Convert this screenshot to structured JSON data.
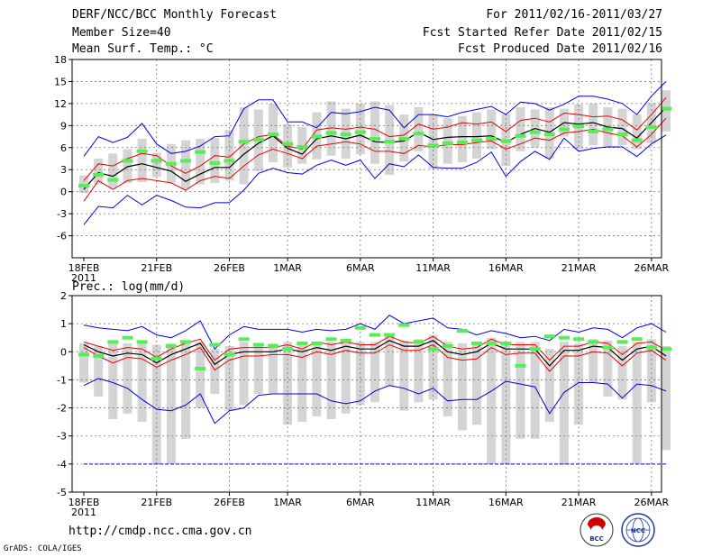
{
  "header": {
    "title": "DERF/NCC/BCC Monthly Forecast",
    "member_size": "Member Size=40",
    "variable1": "Mean Surf. Temp.: °C",
    "period": "For 2011/02/16-2011/03/27",
    "refer_date": "Fcst Started Refer Date 2011/02/15",
    "produced_date": "Fcst Produced Date 2011/02/16"
  },
  "panel2_label": "Prec.: log(mm/d)",
  "footer": {
    "url": "http://cmdp.ncc.cma.gov.cn",
    "credit": "GrADS: COLA/IGES",
    "logo1": "BCC",
    "logo2": "NCC"
  },
  "colors": {
    "max_min": "#0000ee",
    "spread": "#ee0000",
    "mean": "#000000",
    "obs": "#55ee55",
    "box": "#d4d4d4"
  },
  "chart_data": [
    {
      "type": "line",
      "title": "Mean Surf. Temp.: °C",
      "x_labels": [
        {
          "day": 0,
          "label": "18FEB",
          "sub": "2011"
        },
        {
          "day": 5,
          "label": "21FEB"
        },
        {
          "day": 10,
          "label": "26FEB"
        },
        {
          "day": 14,
          "label": "1MAR"
        },
        {
          "day": 19,
          "label": "6MAR"
        },
        {
          "day": 24,
          "label": "11MAR"
        },
        {
          "day": 29,
          "label": "16MAR"
        },
        {
          "day": 34,
          "label": "21MAR"
        },
        {
          "day": 39,
          "label": "26MAR"
        }
      ],
      "ylim": [
        -9,
        18
      ],
      "yticks": [
        -6,
        -3,
        0,
        3,
        6,
        9,
        12,
        15,
        18
      ],
      "series": [
        {
          "name": "max",
          "values": [
            4.8,
            7.5,
            6.7,
            7.4,
            9.3,
            6.5,
            5.2,
            5.5,
            6.2,
            7.5,
            7.6,
            11.3,
            12.5,
            12.5,
            9.5,
            9.5,
            8.7,
            10.8,
            10.6,
            10.9,
            11.5,
            11.1,
            8.7,
            10.5,
            10.5,
            10.2,
            10.8,
            11.2,
            11.6,
            10.5,
            12.2,
            12,
            11.1,
            11.9,
            13,
            13,
            12.6,
            12,
            10.5,
            13,
            15
          ]
        },
        {
          "name": "spread_upper",
          "values": [
            1.5,
            3.8,
            3.5,
            4.5,
            5.2,
            4.9,
            3.5,
            2.5,
            3.5,
            4.9,
            4.7,
            6.5,
            7.5,
            7.8,
            6.2,
            5.8,
            8.4,
            8.7,
            8.5,
            8.8,
            8.5,
            7.5,
            7.7,
            9.2,
            8.5,
            8.8,
            9.4,
            9.2,
            9.5,
            8.2,
            9.7,
            10,
            9.5,
            10.7,
            10.5,
            10.2,
            10.3,
            9.8,
            8.4,
            10.5,
            12.8
          ]
        },
        {
          "name": "mean",
          "values": [
            0.3,
            2.6,
            2.1,
            3.4,
            3.8,
            3.3,
            2.8,
            1.4,
            2.4,
            3.3,
            3.3,
            5.1,
            6.6,
            7.6,
            5.9,
            5.1,
            7.2,
            7.6,
            7.2,
            7.7,
            6.8,
            6.7,
            6.9,
            8.1,
            7.1,
            7.4,
            7.5,
            7.5,
            7.6,
            6.7,
            7.8,
            8.6,
            8.1,
            9.4,
            9.2,
            9.4,
            8.8,
            8.6,
            7.3,
            9.4,
            11.5
          ]
        },
        {
          "name": "spread_lower",
          "values": [
            -1.3,
            1.5,
            0.3,
            1.5,
            1.8,
            1.5,
            1.2,
            0.2,
            1.5,
            2.1,
            1.8,
            3.5,
            5,
            5.8,
            5.2,
            4.5,
            6.2,
            6.5,
            6.8,
            6.5,
            5.5,
            5.5,
            5.2,
            6.3,
            6.1,
            6.4,
            6.4,
            6.7,
            6.9,
            5.8,
            6.5,
            7.3,
            7,
            8,
            8.2,
            8.5,
            8,
            7.6,
            6.1,
            7.8,
            10
          ]
        },
        {
          "name": "min",
          "values": [
            -4.5,
            -2,
            -2.2,
            -0.5,
            -1.8,
            -0.5,
            -1.2,
            -2.1,
            -2.2,
            -1.5,
            -1.5,
            0.2,
            2.5,
            3.2,
            2.6,
            2.4,
            3.6,
            4.3,
            3.6,
            4.3,
            1.8,
            3.8,
            3.4,
            5,
            3.3,
            3.2,
            3.2,
            4,
            5.4,
            2.1,
            4.1,
            5.5,
            4.4,
            7.3,
            5.5,
            5.9,
            6.1,
            6.1,
            4.8,
            6.5,
            7.7
          ]
        },
        {
          "name": "observed",
          "values": [
            0.8,
            2.3,
            1.6,
            4.2,
            5.5,
            4.2,
            3.8,
            4.2,
            5.4,
            3.9,
            4.2,
            6.8,
            7.1,
            7.8,
            6.5,
            6.1,
            7.5,
            8,
            7.8,
            8.1,
            7.2,
            6.8,
            7.2,
            7.9,
            6.3,
            6.6,
            6.7,
            7,
            7.2,
            6.9,
            7.6,
            8.1,
            7.8,
            8.5,
            8.9,
            8.2,
            8.5,
            7.8,
            7,
            8.8,
            11.3
          ]
        },
        {
          "name": "box_high",
          "values": [
            2.2,
            4.5,
            5.2,
            5.8,
            7.2,
            5.3,
            6.5,
            7,
            7.2,
            7.3,
            8.4,
            11.5,
            11.2,
            12,
            9.2,
            8.8,
            10.8,
            12.3,
            11.3,
            12,
            12.3,
            11.8,
            10.5,
            11.5,
            10.5,
            10,
            10.3,
            10.8,
            11.2,
            10.5,
            11.5,
            11.2,
            11.5,
            11.3,
            11.9,
            12,
            11.5,
            11.3,
            10.5,
            12.1,
            13.8
          ]
        },
        {
          "name": "box_low",
          "values": [
            -0.2,
            1,
            0.5,
            1.2,
            1.3,
            2,
            1.2,
            0.4,
            1,
            1.2,
            1.5,
            1,
            2.8,
            4,
            3.3,
            3.8,
            4.4,
            4.9,
            4.5,
            5.1,
            3.8,
            2.3,
            4.1,
            5.5,
            3.1,
            3.8,
            4,
            4.5,
            5.8,
            3.5,
            5.5,
            6,
            4.5,
            7.5,
            5.8,
            6.3,
            6.1,
            6.3,
            5.8,
            6.6,
            8.2
          ]
        }
      ]
    },
    {
      "type": "line",
      "title": "Prec.: log(mm/d)",
      "x_labels": [
        {
          "day": 0,
          "label": "18FEB",
          "sub": "2011"
        },
        {
          "day": 5,
          "label": "21FEB"
        },
        {
          "day": 10,
          "label": "26FEB"
        },
        {
          "day": 14,
          "label": "1MAR"
        },
        {
          "day": 19,
          "label": "6MAR"
        },
        {
          "day": 24,
          "label": "11MAR"
        },
        {
          "day": 29,
          "label": "16MAR"
        },
        {
          "day": 34,
          "label": "21MAR"
        },
        {
          "day": 39,
          "label": "26MAR"
        }
      ],
      "ylim": [
        -5,
        2
      ],
      "yticks": [
        -5,
        -4,
        -3,
        -2,
        -1,
        0,
        1,
        2
      ],
      "series": [
        {
          "name": "max",
          "values": [
            0.95,
            0.85,
            0.8,
            0.75,
            0.9,
            0.6,
            0.5,
            0.75,
            1.1,
            0.1,
            0.6,
            0.9,
            0.8,
            0.8,
            0.8,
            0.7,
            0.8,
            0.75,
            0.8,
            1,
            0.8,
            1.3,
            1,
            1.1,
            1.2,
            0.85,
            0.8,
            0.6,
            0.75,
            0.65,
            0.5,
            0.55,
            0.4,
            0.8,
            0.7,
            0.85,
            0.8,
            0.5,
            0.85,
            1,
            0.7
          ]
        },
        {
          "name": "spread_upper",
          "values": [
            0.35,
            0.2,
            0.05,
            0.15,
            0.1,
            -0.2,
            0.1,
            0.3,
            0.45,
            -0.3,
            0.1,
            0.15,
            0.15,
            0.15,
            0.25,
            0.1,
            0.35,
            0.25,
            0.35,
            0.25,
            0.25,
            0.55,
            0.35,
            0.3,
            0.55,
            0.2,
            0.1,
            0.15,
            0.45,
            0.25,
            0.25,
            0.25,
            -0.3,
            0.2,
            0.2,
            0.35,
            0.3,
            -0.1,
            0.3,
            0.35,
            0.05
          ]
        },
        {
          "name": "mean",
          "values": [
            0.25,
            0,
            -0.15,
            -0.05,
            -0.1,
            -0.4,
            -0.1,
            0.1,
            0.3,
            -0.45,
            -0.1,
            0,
            0,
            0,
            0.1,
            0,
            0.15,
            0.05,
            0.2,
            0.1,
            0.1,
            0.4,
            0.2,
            0.2,
            0.4,
            0,
            -0.1,
            0,
            0.3,
            0.1,
            0.1,
            0.1,
            -0.5,
            0.05,
            0.05,
            0.2,
            0.15,
            -0.3,
            0.1,
            0.2,
            -0.15
          ]
        },
        {
          "name": "spread_lower",
          "values": [
            0.15,
            -0.15,
            -0.4,
            -0.2,
            -0.25,
            -0.55,
            -0.3,
            -0.1,
            0.15,
            -0.65,
            -0.3,
            -0.15,
            -0.15,
            -0.1,
            -0.1,
            -0.2,
            0,
            -0.1,
            0.05,
            -0.05,
            -0.05,
            0.25,
            0.05,
            0.05,
            0.25,
            -0.2,
            -0.3,
            -0.25,
            0.15,
            -0.1,
            -0.05,
            -0.05,
            -0.7,
            -0.15,
            -0.15,
            0,
            -0.05,
            -0.5,
            -0.05,
            0.05,
            -0.3
          ]
        },
        {
          "name": "min",
          "values": [
            -1.2,
            -0.95,
            -1.1,
            -1.3,
            -1.7,
            -2.05,
            -2.1,
            -1.9,
            -1.5,
            -2.55,
            -2.1,
            -2,
            -1.55,
            -1.5,
            -1.5,
            -1.5,
            -1.5,
            -1.75,
            -1.85,
            -1.75,
            -1.4,
            -1.2,
            -1.3,
            -1.5,
            -1.3,
            -1.75,
            -1.7,
            -1.7,
            -1.4,
            -1.05,
            -1.15,
            -1.25,
            -2.2,
            -1.45,
            -1.1,
            -1.1,
            -1.15,
            -1.65,
            -1.15,
            -1.2,
            -1.4
          ]
        },
        {
          "name": "spread_bottom_dashed",
          "values": [
            -4,
            -4,
            -4,
            -4,
            -4,
            -4,
            -4,
            -4,
            -4,
            -4,
            -4,
            -4,
            -4,
            -4,
            -4,
            -4,
            -4,
            -4,
            -4,
            -4,
            -4,
            -4,
            -4,
            -4,
            -4,
            -4,
            -4,
            -4,
            -4,
            -4,
            -4,
            -4,
            -4,
            -4,
            -4,
            -4,
            -4,
            -4,
            -4,
            -4,
            -4
          ]
        },
        {
          "name": "observed",
          "values": [
            -0.1,
            -0.15,
            0.35,
            0.5,
            0.35,
            -0.25,
            0.2,
            0.35,
            -0.6,
            0.25,
            -0.1,
            0.45,
            0.25,
            0.2,
            0.1,
            0.3,
            0.3,
            0.45,
            0.4,
            0.85,
            0.6,
            0.6,
            0.95,
            0.35,
            0.1,
            0.2,
            0.75,
            0.3,
            0.3,
            0.3,
            -0.5,
            0.1,
            0.55,
            0.5,
            0.45,
            0.35,
            0.15,
            0.35,
            0.45,
            0.15,
            0.1
          ]
        },
        {
          "name": "box_high",
          "values": [
            0.3,
            0.2,
            0.3,
            0.3,
            0.3,
            0.25,
            0.3,
            0.3,
            0.35,
            0.1,
            0.2,
            0.35,
            0.3,
            0.3,
            0.35,
            0.3,
            0.35,
            0.35,
            0.4,
            0.35,
            0.35,
            0.6,
            0.4,
            0.45,
            0.6,
            0.35,
            0.3,
            0.3,
            0.5,
            0.35,
            0.35,
            0.35,
            0.1,
            0.35,
            0.3,
            0.45,
            0.4,
            0.2,
            0.35,
            0.45,
            0.2
          ]
        },
        {
          "name": "box_low",
          "values": [
            -1.1,
            -1.6,
            -2.4,
            -2.2,
            -2.5,
            -4,
            -4,
            -3.1,
            -2,
            -1.5,
            -2.1,
            -1.9,
            -1.5,
            -1.5,
            -2.6,
            -2.5,
            -2.3,
            -2.4,
            -2.2,
            -1.9,
            -1.8,
            -1.2,
            -2.1,
            -1.8,
            -1.7,
            -2.3,
            -2.8,
            -2.6,
            -4,
            -4,
            -3.1,
            -3.1,
            -2.5,
            -4,
            -2.6,
            -1.1,
            -1.6,
            -1.7,
            -4,
            -1.8,
            -3.5
          ]
        }
      ]
    }
  ]
}
